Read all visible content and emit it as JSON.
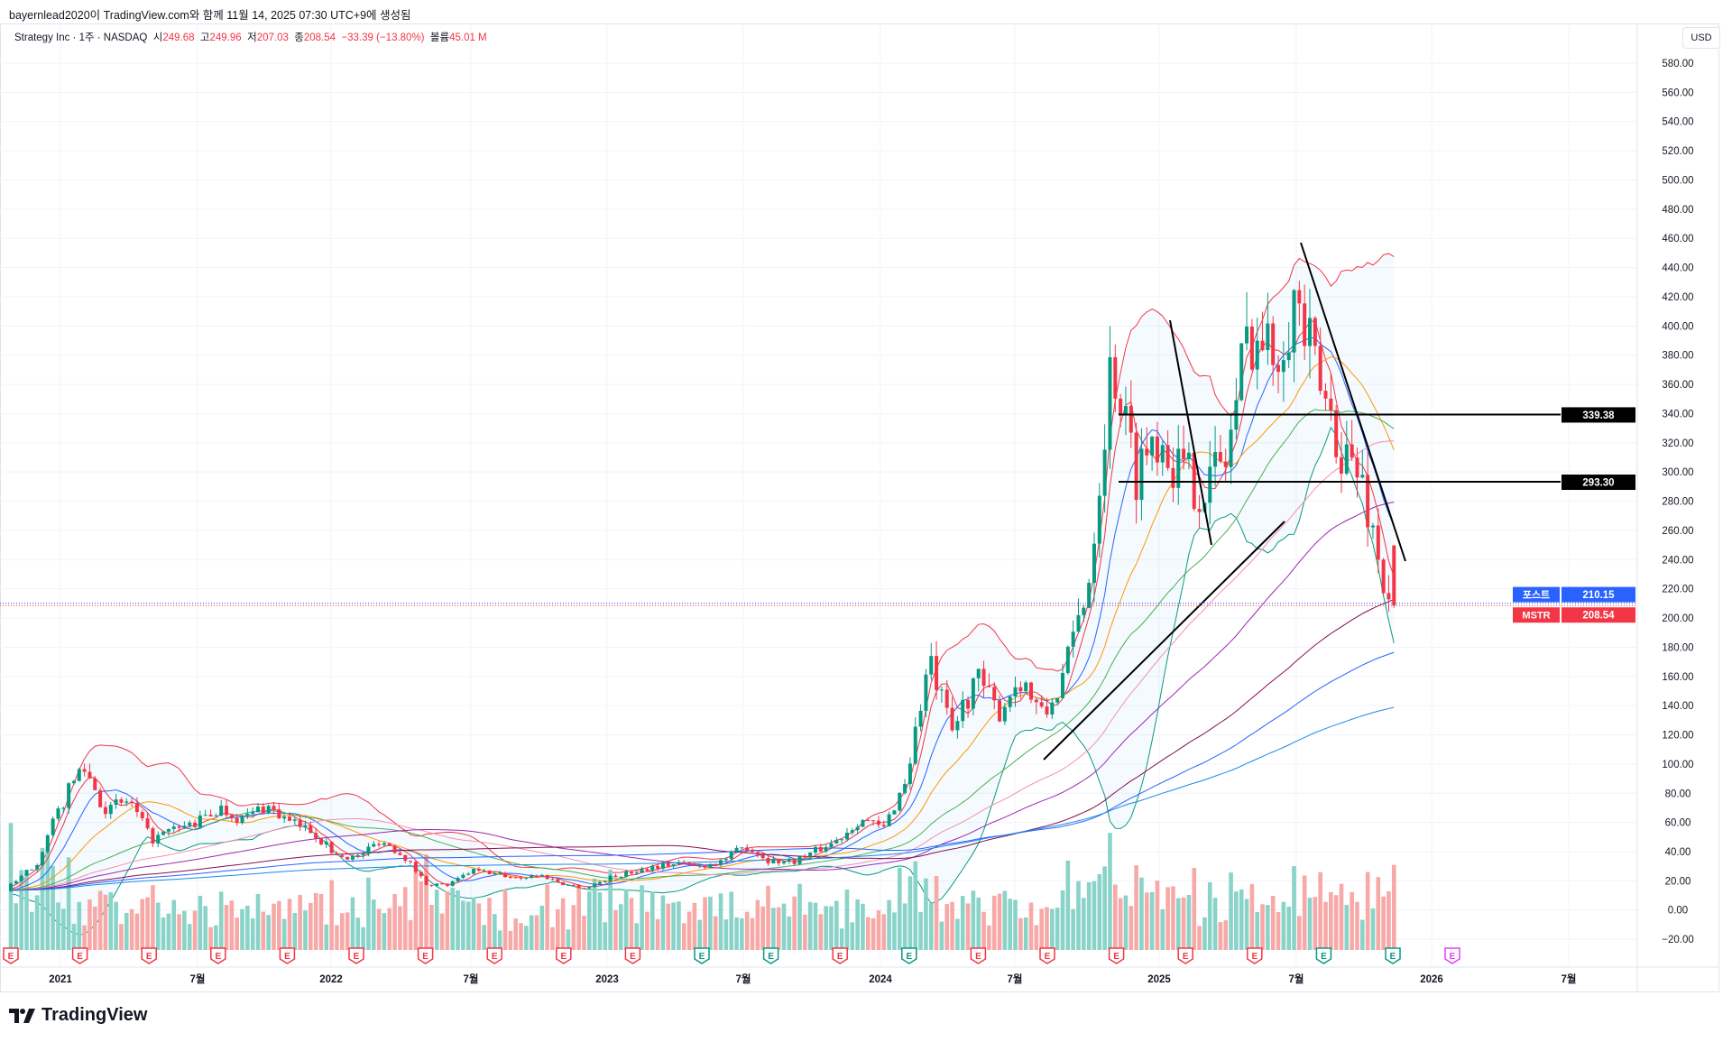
{
  "credit": "bayernlead2020이 TradingView.com와 함께 11월 14, 2025 07:30 UTC+9에 생성됨",
  "legend": {
    "symbol": "Strategy Inc · 1주 · NASDAQ",
    "open_label": "시",
    "open": "249.68",
    "high_label": "고",
    "high": "249.96",
    "low_label": "저",
    "low": "207.03",
    "close_label": "종",
    "close": "208.54",
    "change": "−33.39 (−13.80%)",
    "volume_label": "볼륨",
    "volume": "45.01 M"
  },
  "currency": "USD",
  "brand": "TradingView",
  "colors": {
    "up": "#089981",
    "down": "#f23645",
    "vol_up": "#89d3c8",
    "vol_down": "#f7a9a7",
    "post": "#2962ff"
  },
  "price_labels": [
    {
      "name": "level-339",
      "text": "339.38",
      "value": 339.38,
      "bg": "#000000"
    },
    {
      "name": "level-293",
      "text": "293.30",
      "value": 293.3,
      "bg": "#000000"
    },
    {
      "name": "post-market",
      "tag": "포스트",
      "text": "210.15",
      "value": 210.15,
      "bg": "#2962ff"
    },
    {
      "name": "last-price",
      "tag": "MSTR",
      "text": "208.54",
      "value": 208.54,
      "bg": "#f23645"
    }
  ],
  "earnings": [
    "down",
    "down",
    "down",
    "down",
    "down",
    "down",
    "down",
    "down",
    "down",
    "down",
    "up",
    "up",
    "down",
    "up",
    "down",
    "down",
    "down",
    "down",
    "down",
    "up",
    "up",
    "future"
  ],
  "earnings_label": "E",
  "chart_data": {
    "type": "candlestick",
    "interval": "1W",
    "ylim": [
      -20,
      580
    ],
    "yticks": [
      580,
      560,
      540,
      520,
      500,
      480,
      460,
      440,
      420,
      400,
      380,
      360,
      340,
      320,
      300,
      280,
      260,
      240,
      220,
      200,
      180,
      160,
      140,
      120,
      100,
      80,
      60,
      40,
      20,
      0,
      -20
    ],
    "xticks": [
      "2021",
      "7월",
      "2022",
      "7월",
      "2023",
      "7월",
      "2024",
      "7월",
      "2025",
      "7월",
      "2026",
      "7월"
    ],
    "monthly_close_approx": {
      "start": "2020-10",
      "values": [
        13,
        18,
        33,
        70,
        100,
        68,
        75,
        48,
        55,
        60,
        70,
        62,
        72,
        60,
        55,
        38,
        36,
        48,
        38,
        18,
        17,
        27,
        25,
        22,
        24,
        18,
        15,
        22,
        26,
        30,
        32,
        30,
        34,
        44,
        34,
        33,
        40,
        48,
        63,
        55,
        90,
        170,
        120,
        160,
        135,
        160,
        130,
        165,
        230,
        380,
        300,
        330,
        300,
        290,
        310,
        400,
        380,
        420,
        360,
        320,
        290,
        215
      ]
    },
    "last_candle": {
      "open": 249.68,
      "high": 249.96,
      "low": 207.03,
      "close": 208.54
    },
    "horizontal_levels": [
      339.38,
      293.3
    ],
    "grid": true
  }
}
